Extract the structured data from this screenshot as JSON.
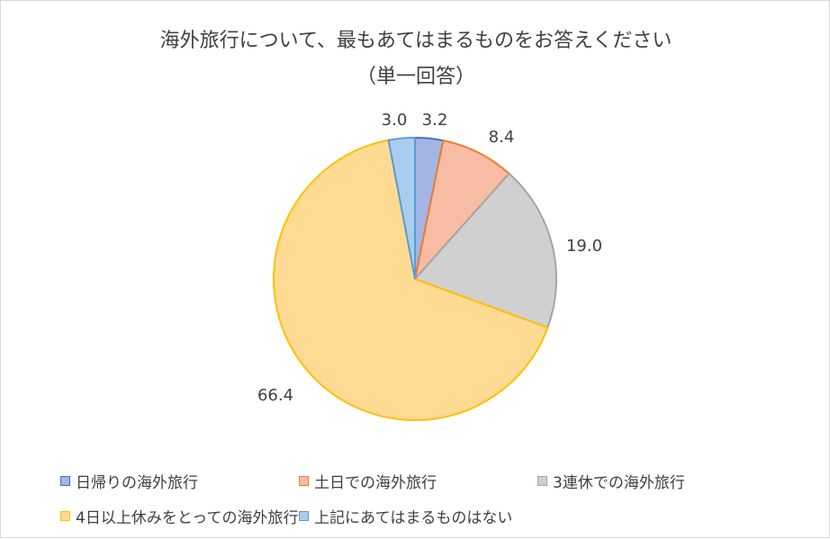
{
  "chart_data": {
    "type": "pie",
    "title": "海外旅行について、最もあてはまるものをお答えください",
    "subtitle": "（単一回答）",
    "categories": [
      "日帰りの海外旅行",
      "土日での海外旅行",
      "3連休での海外旅行",
      "4日以上休みをとっての海外旅行",
      "上記にあてはまるものはない"
    ],
    "values": [
      3.2,
      8.4,
      19.0,
      66.4,
      3.0
    ],
    "value_labels": [
      "3.2",
      "8.4",
      "19.0",
      "66.4",
      "3.0"
    ],
    "colors": {
      "fills": [
        "#a4b5e3",
        "#f7bca4",
        "#d0d0d0",
        "#ffda92",
        "#a9cdee"
      ],
      "strokes": [
        "#4472c4",
        "#ed7d31",
        "#a5a5a5",
        "#ffc000",
        "#5b9bd5"
      ]
    },
    "legend_position": "bottom"
  }
}
